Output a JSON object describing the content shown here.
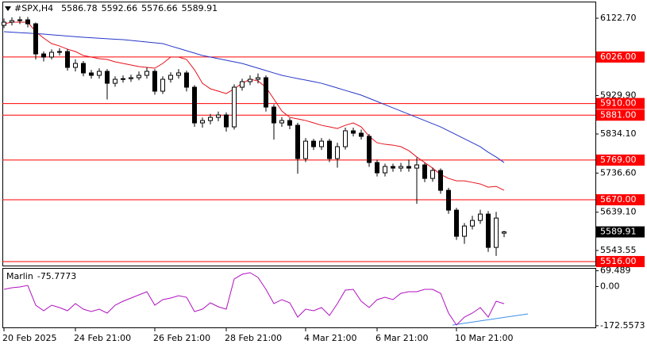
{
  "chart_data": [
    {
      "type": "candlestick",
      "title": "#SPX,H4",
      "categories": [
        "20 Feb 2025",
        null,
        null,
        null,
        null,
        null,
        null,
        null,
        null,
        "24 Feb 21:00",
        null,
        null,
        null,
        null,
        null,
        null,
        null,
        null,
        null,
        "26 Feb 21:00",
        null,
        null,
        null,
        null,
        null,
        null,
        null,
        null,
        "28 Feb 21:00",
        null,
        null,
        null,
        null,
        null,
        null,
        null,
        null,
        null,
        "4 Mar 21:00",
        null,
        null,
        null,
        null,
        null,
        null,
        null,
        null,
        "6 Mar 21:00",
        null,
        null,
        null,
        null,
        null,
        null,
        null,
        null,
        null,
        "10 Mar 21:00",
        null,
        null,
        null,
        null,
        null,
        null
      ],
      "open": [
        6105,
        6112.8,
        6116.7,
        6118.7,
        6108.8,
        6033.7,
        6025.8,
        6037.7,
        6039.6,
        6000.1,
        6010,
        5986.3,
        5980.3,
        5990.2,
        5960.5,
        5970.4,
        5972,
        5974.4,
        5980.3,
        5990.2,
        5940.8,
        5970.4,
        5980.3,
        5986.3,
        5950.7,
        5861.7,
        5867.6,
        5875.5,
        5881.5,
        5851.8,
        5950.7,
        5964.5,
        5970.4,
        5974.4,
        5901.2,
        5861.7,
        5867.6,
        5855.8,
        5772.7,
        5816.2,
        5802.4,
        5816.2,
        5772.7,
        5802.4,
        5842,
        5836,
        5828.1,
        5762.9,
        5737.2,
        5753,
        5749,
        5753,
        5749,
        5756.9,
        5723.3,
        5743.1,
        5693.6,
        5644.2,
        5579,
        5604.6,
        5618.5,
        5634.3,
        5551.3,
        5586.78
      ],
      "high": [
        6122,
        6125,
        6127,
        6126,
        6112,
        6040,
        6045,
        6048,
        6046,
        6020,
        6016,
        5994,
        5998,
        5996,
        5978,
        5980,
        5982,
        5990,
        6000,
        5996,
        5978,
        5988,
        5996,
        5992,
        5956,
        5875,
        5884,
        5890,
        5888,
        5958,
        5972,
        5980,
        5985,
        5980,
        5908,
        5876,
        5874,
        5862,
        5824,
        5822,
        5824,
        5822,
        5812,
        5850,
        5850,
        5845,
        5834,
        5770,
        5760,
        5760,
        5762,
        5770,
        5775,
        5762,
        5750,
        5748,
        5700,
        5650,
        5612,
        5630,
        5645,
        5642,
        5640,
        5592.66
      ],
      "low": [
        6098,
        6105,
        6108,
        6100,
        6020,
        6015,
        6020,
        6030,
        5992,
        5990,
        5978,
        5972,
        5972,
        5920,
        5952,
        5962,
        5964,
        5968,
        5972,
        5932,
        5934,
        5962,
        5972,
        5940,
        5852,
        5850,
        5858,
        5866,
        5840,
        5845,
        5942,
        5956,
        5960,
        5890,
        5820,
        5852,
        5846,
        5735,
        5764,
        5794,
        5794,
        5764,
        5750,
        5795,
        5828,
        5820,
        5752,
        5728,
        5728,
        5740,
        5740,
        5740,
        5660,
        5714,
        5715,
        5685,
        5635,
        5570,
        5560,
        5596,
        5610,
        5540,
        5530,
        5576.66
      ],
      "close": [
        6112.8,
        6116.7,
        6118.7,
        6108.8,
        6033.7,
        6025.8,
        6037.7,
        6039.6,
        6000.1,
        6010,
        5986.3,
        5980.3,
        5990.2,
        5960.5,
        5970.4,
        5972,
        5974.4,
        5980.3,
        5990.2,
        5940.8,
        5970.4,
        5980.3,
        5986.3,
        5950.7,
        5861.7,
        5867.6,
        5875.5,
        5881.5,
        5851.8,
        5950.7,
        5964.5,
        5970.4,
        5974.4,
        5901.2,
        5861.7,
        5867.6,
        5855.8,
        5772.7,
        5816.2,
        5802.4,
        5816.2,
        5772.7,
        5802.4,
        5842,
        5836,
        5828.1,
        5762.9,
        5737.2,
        5753,
        5749,
        5753,
        5749,
        5756.9,
        5723.3,
        5743.1,
        5693.6,
        5644.2,
        5579,
        5604.6,
        5618.5,
        5634.3,
        5551.3,
        5624.4,
        5589.91
      ],
      "up_color": "#ffffff",
      "down_color": "#000000",
      "outline_color": "#000000",
      "lines": [
        {
          "color": "#e8101a",
          "values": [
            6108.8,
            6112.7,
            6112.7,
            6112.7,
            6089.0,
            6073.2,
            6059.4,
            6053.4,
            6045.5,
            6039.6,
            6029.7,
            6025.8,
            6021.8,
            6019.9,
            6013.9,
            6010.0,
            6006.0,
            6002.0,
            6000.1,
            5998.1,
            6010.0,
            6025.8,
            6025.8,
            6019.9,
            5994.1,
            5960.5,
            5946.7,
            5940.8,
            5934.8,
            5946.7,
            5960.5,
            5970.4,
            5966.4,
            5950.6,
            5921.0,
            5891.3,
            5875.5,
            5871.6,
            5867.6,
            5861.7,
            5855.7,
            5851.8,
            5847.8,
            5855.7,
            5861.7,
            5851.8,
            5828.1,
            5812.2,
            5808.3,
            5806.3,
            5802.4,
            5792.5,
            5776.7,
            5762.8,
            5749.0,
            5733.2,
            5723.3,
            5717.3,
            5717.3,
            5713.4,
            5709.4,
            5701.5,
            5703.5,
            5693.6
          ]
        },
        {
          "color": "#2638c8",
          "values": [
            6089.0,
            6087.8,
            6086.6,
            6085.5,
            6084.3,
            6083.1,
            6081.5,
            6079.9,
            6078.3,
            6076.8,
            6075.2,
            6074.0,
            6072.8,
            6071.6,
            6070.4,
            6069.3,
            6067.3,
            6065.3,
            6063.3,
            6061.3,
            6059.4,
            6053.4,
            6047.5,
            6041.6,
            6035.7,
            6029.7,
            6025.8,
            6021.8,
            6017.9,
            6013.9,
            6010.0,
            6004.0,
            5998.1,
            5992.2,
            5986.2,
            5980.3,
            5976.3,
            5972.3,
            5968.4,
            5964.5,
            5960.5,
            5954.6,
            5948.7,
            5942.7,
            5936.8,
            5930.9,
            5923.0,
            5915.1,
            5907.1,
            5899.2,
            5891.3,
            5883.4,
            5875.5,
            5867.6,
            5859.7,
            5851.8,
            5841.9,
            5832.0,
            5822.1,
            5812.2,
            5802.4,
            5788.5,
            5776.7,
            5762.8
          ]
        }
      ],
      "levels": {
        "color": "#ff0000",
        "values": [
          {
            "value": 6026,
            "label": "6026.00"
          },
          {
            "value": 5910,
            "label": "5910.00"
          },
          {
            "value": 5881,
            "label": "5881.00"
          },
          {
            "value": 5769,
            "label": "5769.00"
          },
          {
            "value": 5670,
            "label": "5670.00"
          },
          {
            "value": 5516,
            "label": "5516.00"
          }
        ]
      },
      "ylim": [
        5506,
        6162.2
      ],
      "yticks": [
        {
          "value": 6122.7,
          "label": "6122.70"
        },
        {
          "value": 5929.9,
          "label": "5929.90"
        },
        {
          "value": 5834.1,
          "label": "5834.10"
        },
        {
          "value": 5736.6,
          "label": "5736.60"
        },
        {
          "value": 5639.1,
          "label": "5639.10"
        },
        5543.55
      ]
    },
    {
      "type": "line",
      "series": [
        {
          "name": "Marlin",
          "color": "#b012c0",
          "values": [
            -12.3,
            -5.3,
            -1.8,
            5.1,
            -82.2,
            -106.6,
            -82.2,
            -92.7,
            -106.6,
            -75.2,
            -99.7,
            -110.1,
            -99.7,
            -117.1,
            -82.2,
            -64.7,
            -50.7,
            -36.8,
            -22.8,
            -82.2,
            -57.7,
            -50.7,
            -40.3,
            -47.3,
            -110.1,
            -99.7,
            -71.7,
            -89.2,
            -99.7,
            33.1,
            54.0,
            61.0,
            40.1,
            -12.3,
            -75.2,
            -57.7,
            -71.7,
            -134.6,
            -99.7,
            -106.6,
            -92.7,
            -127.6,
            -75.2,
            -15.8,
            -12.3,
            -64.7,
            -92.7,
            -57.7,
            -47.3,
            -57.7,
            -29.8,
            -22.8,
            -22.8,
            -12.3,
            -12.3,
            -29.8,
            -117.1,
            -169.5,
            -134.6,
            -117.1,
            -92.7,
            -134.6,
            -64.7,
            -75.7773
          ]
        }
      ],
      "ylim": [
        -180,
        75
      ],
      "yticks": [
        69.489,
        {
          "value": 0,
          "label": "0.00"
        },
        -172.5573
      ]
    }
  ]
}
